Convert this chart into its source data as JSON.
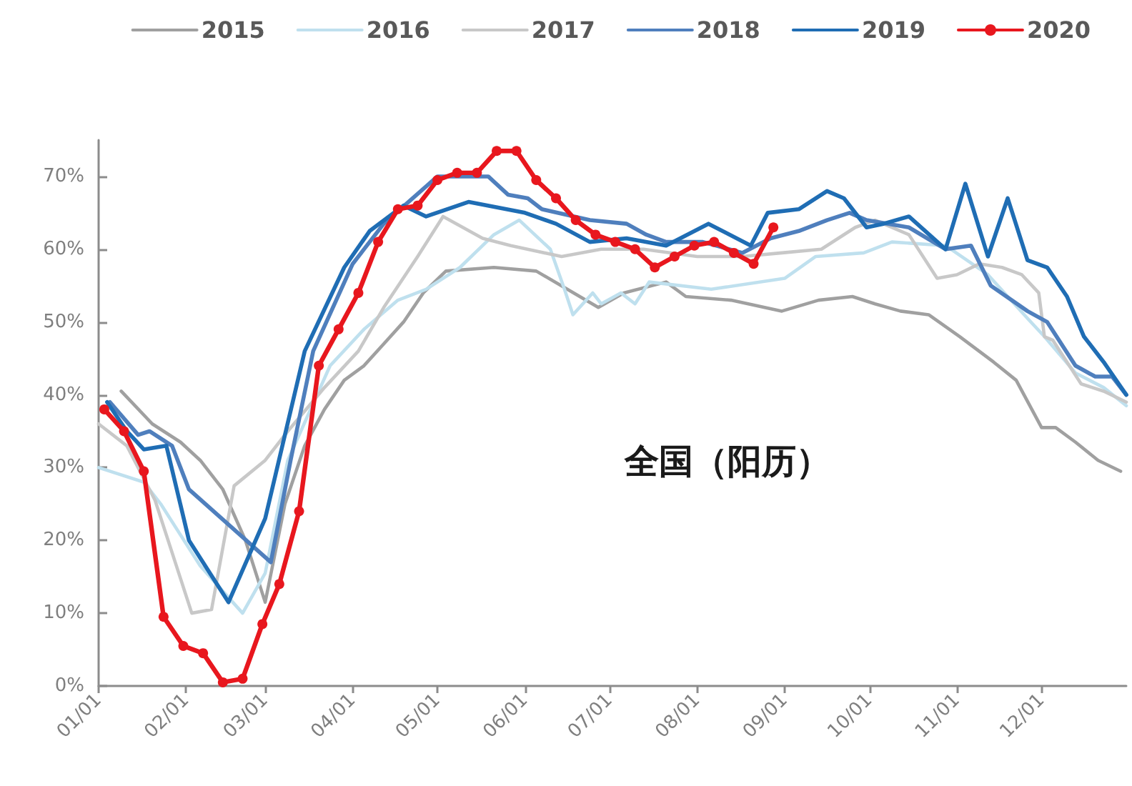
{
  "chart_data": {
    "type": "line",
    "legend": "top",
    "marker": "none",
    "line_style": "solid",
    "grid": false,
    "annotations": [
      "全国（阳历）"
    ],
    "xlim": [
      "--01-01",
      "--12-31"
    ],
    "xticks": [
      {
        "value": "--01-01",
        "label": "01/01"
      },
      {
        "value": "--02-01",
        "label": "02/01"
      },
      {
        "value": "--03-01",
        "label": "03/01"
      },
      {
        "value": "--04-01",
        "label": "04/01"
      },
      {
        "value": "--05-01",
        "label": "05/01"
      },
      {
        "value": "--06-01",
        "label": "06/01"
      },
      {
        "value": "--07-01",
        "label": "07/01"
      },
      {
        "value": "--08-01",
        "label": "08/01"
      },
      {
        "value": "--09-01",
        "label": "09/01"
      },
      {
        "value": "--10-01",
        "label": "10/01"
      },
      {
        "value": "--11-01",
        "label": "11/01"
      },
      {
        "value": "--12-01",
        "label": "12/01"
      }
    ],
    "ylim": [
      0,
      75
    ],
    "yticks": [
      {
        "value": 0,
        "label": "0%"
      },
      {
        "value": 10,
        "label": "10%"
      },
      {
        "value": 20,
        "label": "20%"
      },
      {
        "value": 30,
        "label": "30%"
      },
      {
        "value": 40,
        "label": "40%"
      },
      {
        "value": 50,
        "label": "50%"
      },
      {
        "value": 60,
        "label": "60%"
      },
      {
        "value": 70,
        "label": "70%"
      }
    ],
    "series": [
      {
        "name": "2015",
        "color": "#a0a0a0",
        "x": [
          "--01-09",
          "--01-20",
          "--01-30",
          "--02-06",
          "--02-14",
          "--02-22",
          "--03-01",
          "--03-08",
          "--03-15",
          "--03-22",
          "--03-29",
          "--04-05",
          "--04-12",
          "--04-19",
          "--04-26",
          "--05-04",
          "--05-21",
          "--06-05",
          "--06-16",
          "--06-27",
          "--07-06",
          "--07-21",
          "--07-28",
          "--08-13",
          "--08-31",
          "--09-13",
          "--09-25",
          "--10-03",
          "--10-12",
          "--10-22",
          "--11-02",
          "--11-14",
          "--11-22",
          "--12-01",
          "--12-06",
          "--12-13",
          "--12-21",
          "--12-29"
        ],
        "values": [
          40.5,
          36,
          33.5,
          31,
          27,
          20,
          11.5,
          25,
          33,
          38,
          42,
          44,
          47,
          50,
          54,
          57,
          57.5,
          57,
          54.5,
          52,
          54,
          55.5,
          53.5,
          53,
          51.5,
          53,
          53.5,
          52.5,
          51.5,
          51,
          48,
          44.5,
          42,
          35.5,
          35.5,
          33.5,
          31,
          29.5
        ]
      },
      {
        "name": "2016",
        "color": "#bfe0ee",
        "x": [
          "--01-01",
          "--01-17",
          "--01-23",
          "--02-06",
          "--02-21",
          "--03-01",
          "--03-09",
          "--03-24",
          "--04-05",
          "--04-17",
          "--04-27",
          "--05-09",
          "--05-21",
          "--05-30",
          "--06-10",
          "--06-15",
          "--06-18",
          "--06-25",
          "--06-28",
          "--07-05",
          "--07-10",
          "--07-15",
          "--08-06",
          "--09-01",
          "--09-12",
          "--09-29",
          "--10-09",
          "--10-28",
          "--11-12",
          "--11-26",
          "--12-02",
          "--12-13",
          "--12-23",
          "--12-31"
        ],
        "values": [
          30,
          28,
          25,
          16.5,
          10,
          15.5,
          31,
          44,
          49,
          53,
          54.5,
          57.5,
          62,
          64,
          60,
          54.5,
          51,
          54,
          52.5,
          54,
          52.5,
          55.5,
          54.5,
          56,
          59,
          59.5,
          61,
          60.5,
          56.5,
          50.5,
          48,
          43,
          41,
          38.5
        ]
      },
      {
        "name": "2017",
        "color": "#c8c8c8",
        "x": [
          "--01-01",
          "--01-11",
          "--01-21",
          "--02-03",
          "--02-10",
          "--02-18",
          "--03-01",
          "--03-09",
          "--03-22",
          "--04-03",
          "--04-12",
          "--04-24",
          "--05-03",
          "--05-17",
          "--05-27",
          "--06-14",
          "--06-28",
          "--07-13",
          "--08-01",
          "--08-17",
          "--08-31",
          "--09-14",
          "--09-26",
          "--10-03",
          "--10-15",
          "--10-25",
          "--11-01",
          "--11-09",
          "--11-17",
          "--11-24",
          "--11-30",
          "--12-02",
          "--12-05",
          "--12-15",
          "--12-23",
          "--12-31"
        ],
        "values": [
          36,
          33,
          25.5,
          10,
          10.5,
          27.5,
          31,
          35,
          41,
          46,
          52,
          59,
          64.5,
          61.5,
          60.5,
          59,
          60,
          60,
          59,
          59,
          59.5,
          60,
          63,
          64,
          62,
          56,
          56.5,
          58,
          57.5,
          56.5,
          54,
          48,
          47.5,
          41.5,
          40.5,
          39
        ]
      },
      {
        "name": "2018",
        "color": "#4f7fbd",
        "x": [
          "--01-05",
          "--01-15",
          "--01-19",
          "--01-27",
          "--02-02",
          "--03-03",
          "--03-10",
          "--03-18",
          "--04-01",
          "--04-12",
          "--05-01",
          "--05-19",
          "--05-26",
          "--06-02",
          "--06-07",
          "--06-24",
          "--07-07",
          "--07-14",
          "--07-21",
          "--08-03",
          "--08-17",
          "--08-27",
          "--09-06",
          "--09-16",
          "--09-24",
          "--09-30",
          "--10-15",
          "--10-28",
          "--11-06",
          "--11-13",
          "--11-26",
          "--12-03",
          "--12-13",
          "--12-20",
          "--12-26",
          "--12-31"
        ],
        "values": [
          39,
          34.5,
          35,
          33,
          27,
          17,
          31,
          46,
          58,
          63.5,
          70,
          70,
          67.5,
          67,
          65.5,
          64,
          63.5,
          62,
          61,
          61,
          59.5,
          61.5,
          62.5,
          64,
          65,
          64,
          63,
          60,
          60.5,
          55,
          51.5,
          50,
          44,
          42.5,
          42.5,
          40
        ]
      },
      {
        "name": "2019",
        "color": "#1f6db4",
        "x": [
          "--01-04",
          "--01-11",
          "--01-17",
          "--01-25",
          "--02-02",
          "--02-16",
          "--03-01",
          "--03-15",
          "--03-29",
          "--04-07",
          "--04-19",
          "--04-27",
          "--05-12",
          "--06-01",
          "--06-12",
          "--06-24",
          "--07-07",
          "--07-21",
          "--08-05",
          "--08-20",
          "--08-26",
          "--09-06",
          "--09-16",
          "--09-22",
          "--09-30",
          "--10-06",
          "--10-15",
          "--10-28",
          "--11-04",
          "--11-12",
          "--11-19",
          "--11-26",
          "--12-03",
          "--12-10",
          "--12-16",
          "--12-23",
          "--12-31"
        ],
        "values": [
          39,
          35,
          32.5,
          33,
          20,
          11.5,
          23,
          46,
          57.5,
          62.5,
          66,
          64.5,
          66.5,
          65,
          63.5,
          61,
          61.5,
          60.5,
          63.5,
          60.5,
          65,
          65.5,
          68,
          67,
          63,
          63.5,
          64.5,
          60,
          69,
          59,
          67,
          58.5,
          57.5,
          53.5,
          48,
          44.5,
          40
        ]
      },
      {
        "name": "2020",
        "color": "#e8171e",
        "marker": "circle",
        "x": [
          "--01-03",
          "--01-10",
          "--01-17",
          "--01-24",
          "--01-31",
          "--02-07",
          "--02-14",
          "--02-21",
          "--02-28",
          "--03-06",
          "--03-13",
          "--03-20",
          "--03-27",
          "--04-03",
          "--04-10",
          "--04-17",
          "--04-24",
          "--05-01",
          "--05-08",
          "--05-15",
          "--05-22",
          "--05-29",
          "--06-05",
          "--06-12",
          "--06-19",
          "--06-26",
          "--07-03",
          "--07-10",
          "--07-17",
          "--07-24",
          "--07-31",
          "--08-07",
          "--08-14",
          "--08-21",
          "--08-28"
        ],
        "values": [
          38,
          35,
          29.5,
          9.5,
          5.5,
          4.5,
          0.5,
          1,
          8.5,
          14,
          24,
          44,
          49,
          54,
          61,
          65.5,
          66,
          69.5,
          70.5,
          70.5,
          73.5,
          73.5,
          69.5,
          67,
          64,
          62,
          61,
          60,
          57.5,
          59,
          60.5,
          61,
          59.5,
          58,
          63
        ]
      }
    ]
  }
}
